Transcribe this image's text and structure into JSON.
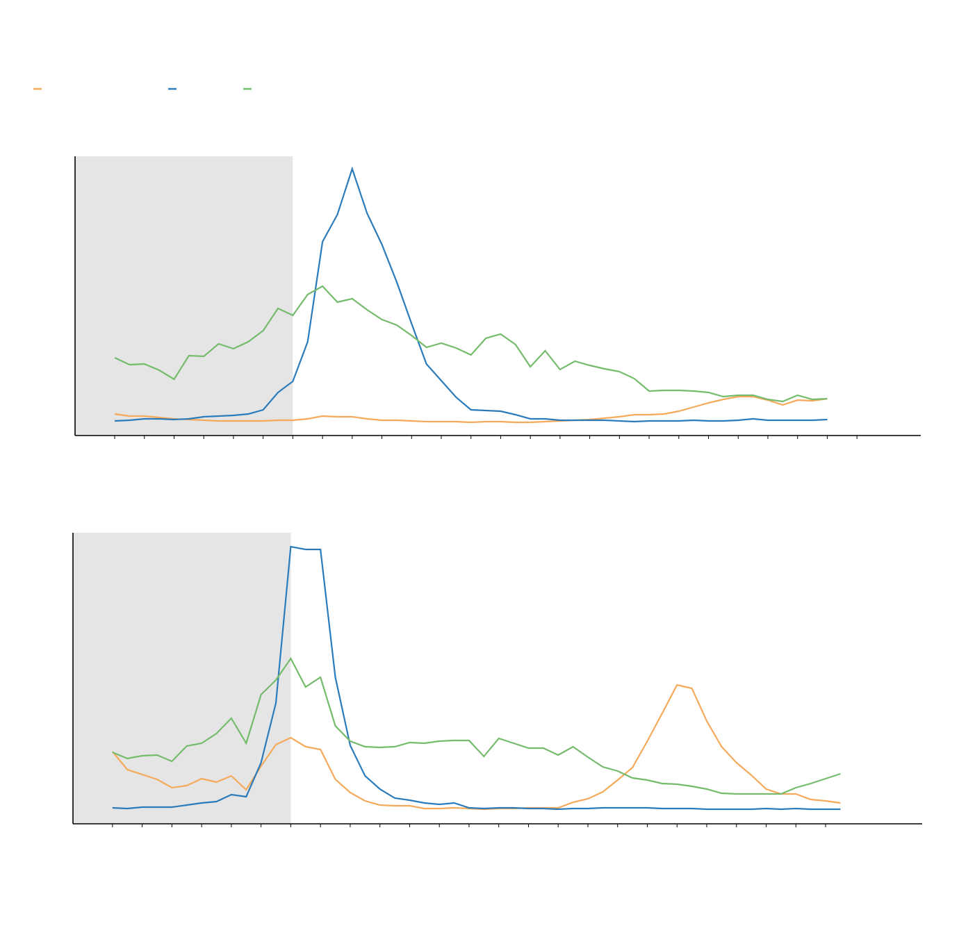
{
  "chart_data": [
    {
      "type": "line",
      "x": [
        0,
        1,
        2,
        3,
        4,
        5,
        6,
        7,
        8,
        9,
        10,
        11,
        12,
        13,
        14,
        15,
        16,
        17,
        18,
        19,
        20,
        21,
        22,
        23,
        24,
        25,
        26,
        27,
        28,
        29,
        30,
        31,
        32,
        33,
        34,
        35,
        36,
        37,
        38,
        39,
        40,
        41,
        42,
        43,
        44,
        45,
        46,
        47,
        48
      ],
      "xlim": [
        -2.67,
        54.3
      ],
      "xticks": [
        0,
        2,
        4,
        6,
        8,
        10,
        12,
        14,
        16,
        18,
        20,
        22,
        24,
        26,
        28,
        30,
        32,
        34,
        36,
        38,
        40,
        42,
        44,
        46,
        48,
        50
      ],
      "ylim": [
        0,
        402
      ],
      "shaded_x": [
        -2.67,
        12
      ],
      "legend": true,
      "series": [
        {
          "color": "#f5a95a",
          "values": [
            31,
            28,
            28,
            26,
            24,
            23,
            22,
            21,
            21,
            21,
            21,
            22,
            22,
            24,
            28,
            27,
            27,
            24,
            22,
            22,
            21,
            20,
            20,
            20,
            19,
            20,
            20,
            19,
            19,
            20,
            21,
            22,
            23,
            25,
            27,
            30,
            30,
            31,
            35,
            41,
            47,
            52,
            56,
            56,
            51,
            44,
            51,
            50,
            53
          ]
        },
        {
          "color": "#2b7bba",
          "values": [
            21,
            22,
            24,
            24,
            23,
            24,
            27,
            28,
            29,
            31,
            37,
            62,
            78,
            135,
            279,
            318,
            384,
            320,
            275,
            221,
            161,
            103,
            79,
            55,
            37,
            36,
            35,
            30,
            24,
            24,
            22,
            22,
            22,
            22,
            21,
            20,
            21,
            21,
            21,
            22,
            21,
            21,
            22,
            24,
            22,
            22,
            22,
            22,
            23
          ]
        },
        {
          "color": "#74bb6b",
          "values": [
            112,
            102,
            103,
            94,
            81,
            115,
            114,
            132,
            125,
            135,
            151,
            183,
            173,
            203,
            215,
            192,
            197,
            181,
            167,
            159,
            144,
            127,
            133,
            126,
            116,
            140,
            146,
            131,
            99,
            122,
            95,
            107,
            101,
            96,
            92,
            82,
            64,
            65,
            65,
            64,
            62,
            56,
            58,
            58,
            52,
            49,
            58,
            52,
            53
          ]
        }
      ]
    },
    {
      "type": "line",
      "x": [
        0,
        1,
        2,
        3,
        4,
        5,
        6,
        7,
        8,
        9,
        10,
        11,
        12,
        13,
        14,
        15,
        16,
        17,
        18,
        19,
        20,
        21,
        22,
        23,
        24,
        25,
        26,
        27,
        28,
        29,
        30,
        31,
        32,
        33,
        34,
        35,
        36,
        37,
        38,
        39,
        40,
        41,
        42,
        43,
        44,
        45,
        46,
        47,
        48,
        49
      ],
      "xlim": [
        -2.66,
        54.5
      ],
      "xticks": [
        0,
        2,
        4,
        6,
        8,
        10,
        12,
        14,
        16,
        18,
        20,
        22,
        24,
        26,
        28,
        30,
        32,
        34,
        36,
        38,
        40,
        42,
        44,
        46,
        48
      ],
      "ylim": [
        0,
        419
      ],
      "shaded_x": [
        -2.66,
        12
      ],
      "series": [
        {
          "color": "#f5a95a",
          "values": [
            104,
            78,
            71,
            64,
            52,
            55,
            65,
            60,
            69,
            49,
            83,
            114,
            124,
            111,
            107,
            64,
            45,
            33,
            27,
            26,
            26,
            22,
            22,
            23,
            22,
            21,
            22,
            22,
            23,
            23,
            23,
            31,
            36,
            46,
            63,
            81,
            119,
            159,
            200,
            195,
            148,
            111,
            88,
            70,
            50,
            43,
            43,
            35,
            33,
            30
          ]
        },
        {
          "color": "#2b7bba",
          "values": [
            23,
            22,
            24,
            24,
            24,
            27,
            30,
            32,
            42,
            39,
            88,
            174,
            399,
            395,
            395,
            211,
            113,
            69,
            50,
            37,
            34,
            30,
            28,
            30,
            23,
            22,
            23,
            23,
            22,
            22,
            21,
            22,
            22,
            23,
            23,
            23,
            23,
            22,
            22,
            22,
            21,
            21,
            21,
            21,
            22,
            21,
            22,
            21,
            21,
            21
          ]
        },
        {
          "color": "#74bb6b",
          "values": [
            103,
            94,
            98,
            99,
            90,
            112,
            116,
            130,
            152,
            116,
            186,
            207,
            238,
            197,
            211,
            141,
            119,
            111,
            110,
            111,
            117,
            116,
            119,
            120,
            120,
            97,
            123,
            116,
            109,
            109,
            99,
            111,
            96,
            82,
            76,
            66,
            63,
            58,
            57,
            54,
            50,
            44,
            43,
            43,
            43,
            43,
            52,
            58,
            65,
            72
          ]
        }
      ]
    }
  ]
}
